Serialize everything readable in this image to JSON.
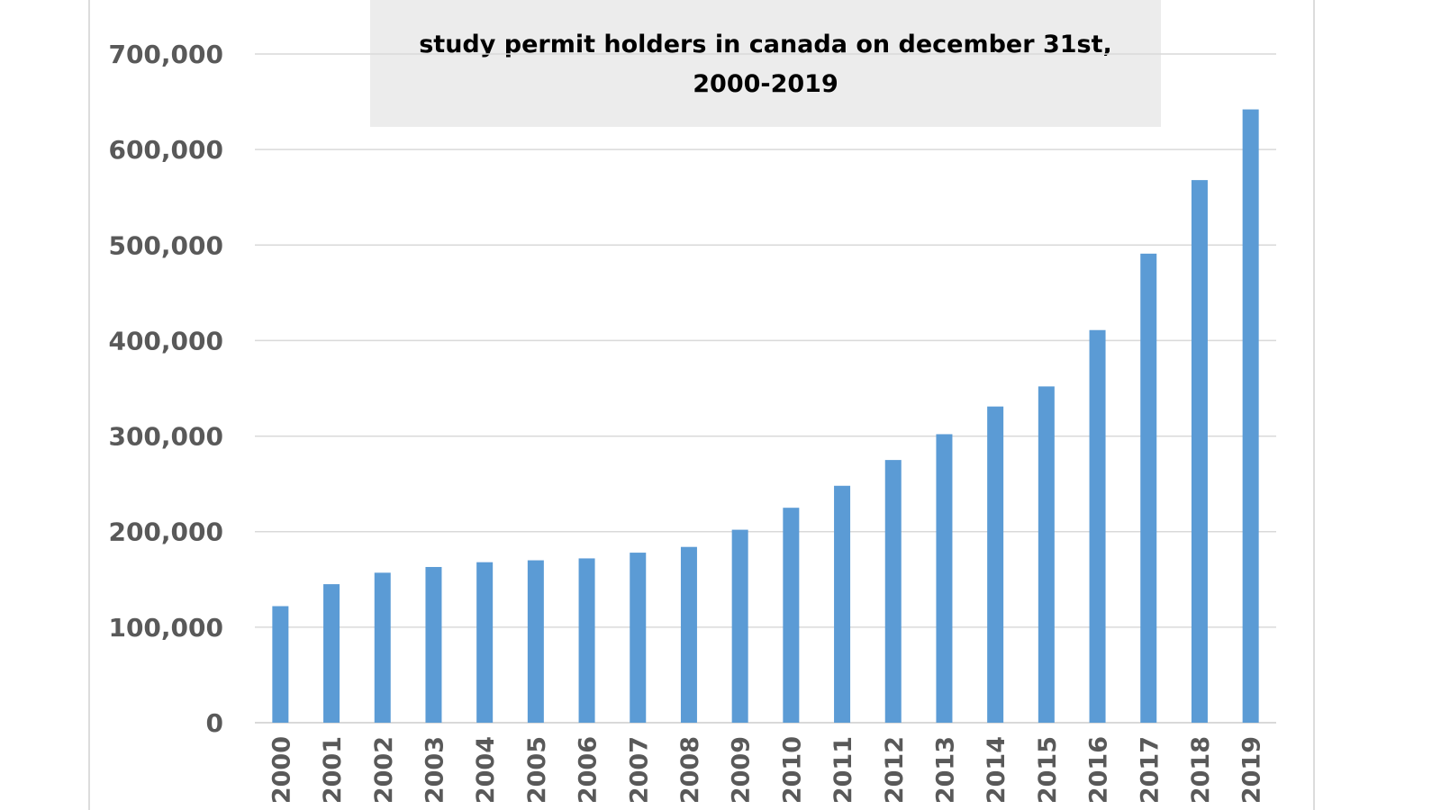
{
  "chart_data": {
    "type": "bar",
    "title": "study permit holders in canada on december 31st, 2000-2019",
    "xlabel": "",
    "ylabel": "",
    "categories": [
      "2000",
      "2001",
      "2002",
      "2003",
      "2004",
      "2005",
      "2006",
      "2007",
      "2008",
      "2009",
      "2010",
      "2011",
      "2012",
      "2013",
      "2014",
      "2015",
      "2016",
      "2017",
      "2018",
      "2019"
    ],
    "values": [
      122000,
      145000,
      157000,
      163000,
      168000,
      170000,
      172000,
      178000,
      184000,
      202000,
      225000,
      248000,
      275000,
      302000,
      331000,
      352000,
      411000,
      491000,
      568000,
      642000
    ],
    "ylim": [
      0,
      700000
    ],
    "yticks": [
      0,
      100000,
      200000,
      300000,
      400000,
      500000,
      600000,
      700000
    ],
    "ytick_labels": [
      "0",
      "100,000",
      "200,000",
      "300,000",
      "400,000",
      "500,000",
      "600,000",
      "700,000"
    ],
    "grid": true,
    "legend": "none",
    "colors": {
      "bar": "#5b9bd5",
      "grid": "#d9d9d9",
      "tick_text": "#595959",
      "title_box": "#ececec"
    }
  }
}
